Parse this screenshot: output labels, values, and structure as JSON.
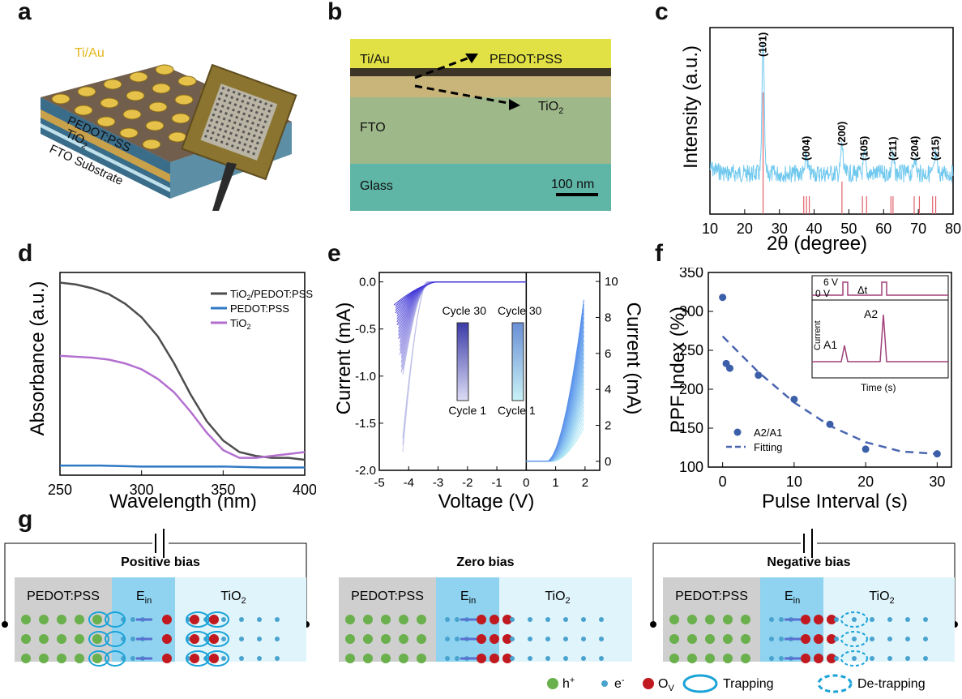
{
  "panels": {
    "a": "a",
    "b": "b",
    "c": "c",
    "d": "d",
    "e": "e",
    "f": "f",
    "g": "g"
  },
  "panel_a": {
    "labels": [
      "Ti/Au",
      "PEDOT:PSS",
      "TiO",
      "2",
      "FTO Substrate"
    ]
  },
  "panel_b": {
    "layers": [
      "Ti/Au",
      "FTO",
      "Glass"
    ],
    "arrow_labels": [
      "PEDOT:PSS",
      "TiO",
      "2"
    ],
    "scale_bar": "100 nm"
  },
  "chart_data": [
    {
      "panel": "c",
      "type": "line",
      "xlabel": "2θ (degree)",
      "ylabel": "Intensity (a.u.)",
      "xlim": [
        10,
        80
      ],
      "xticks": [
        "10",
        "20",
        "30",
        "40",
        "50",
        "60",
        "70",
        "80"
      ],
      "peaks": [
        {
          "x": 25.3,
          "label": "(101)"
        },
        {
          "x": 37.8,
          "label": "(004)"
        },
        {
          "x": 48.0,
          "label": "(200)"
        },
        {
          "x": 54.5,
          "label": "(105)"
        },
        {
          "x": 62.7,
          "label": "(211)"
        },
        {
          "x": 69.0,
          "label": "(204)"
        },
        {
          "x": 75.0,
          "label": "(215)"
        }
      ],
      "reference_lines": [
        25.3,
        37.0,
        37.8,
        38.6,
        48.0,
        53.9,
        55.1,
        62.1,
        62.7,
        68.8,
        70.3,
        74.1,
        75.0
      ],
      "colors": {
        "pattern": "#6fc8ee",
        "reference": "#e0606a"
      }
    },
    {
      "panel": "d",
      "type": "line",
      "xlabel": "Wavelength (nm)",
      "ylabel": "Absorbance (a.u.)",
      "xlim": [
        250,
        400
      ],
      "xticks": [
        "250",
        "300",
        "350",
        "400"
      ],
      "series": [
        {
          "name": "TiO2/PEDOT:PSS",
          "name_main": "TiO",
          "name_sub": "2",
          "name_rest": "/PEDOT:PSS",
          "color": "#4d4d4d",
          "x": [
            250,
            260,
            270,
            280,
            290,
            300,
            310,
            320,
            330,
            340,
            350,
            360,
            370,
            380,
            390,
            400
          ],
          "y": [
            1.0,
            0.99,
            0.97,
            0.94,
            0.89,
            0.82,
            0.72,
            0.58,
            0.42,
            0.28,
            0.18,
            0.12,
            0.1,
            0.09,
            0.09,
            0.08
          ]
        },
        {
          "name": "PEDOT:PSS",
          "color": "#2f78c4",
          "x": [
            250,
            275,
            300,
            325,
            350,
            375,
            400
          ],
          "y": [
            0.05,
            0.05,
            0.045,
            0.045,
            0.045,
            0.04,
            0.04
          ]
        },
        {
          "name": "TiO2",
          "name_main": "TiO",
          "name_sub": "2",
          "name_rest": "",
          "color": "#b36fcf",
          "x": [
            250,
            260,
            270,
            280,
            290,
            300,
            310,
            320,
            330,
            340,
            350,
            360,
            370,
            380,
            390,
            400
          ],
          "y": [
            0.62,
            0.615,
            0.61,
            0.6,
            0.58,
            0.55,
            0.5,
            0.43,
            0.33,
            0.22,
            0.13,
            0.09,
            0.09,
            0.1,
            0.11,
            0.12
          ]
        }
      ]
    },
    {
      "panel": "e",
      "type": "line",
      "xlabel": "Voltage (V)",
      "ylabel_left": "Current (mA)",
      "ylabel_right": "Current (mA)",
      "x_left": [
        -5,
        0
      ],
      "x_right": [
        0,
        2.5
      ],
      "xticks": [
        "-5",
        "-4",
        "-3",
        "-2",
        "-1",
        "0",
        "1",
        "2"
      ],
      "yticks_left": [
        "0.0",
        "-0.5",
        "-1.0",
        "-1.5",
        "-2.0"
      ],
      "yticks_right": [
        "10",
        "8",
        "6",
        "4",
        "2",
        "0"
      ],
      "ylim_left": [
        -2.0,
        0.1
      ],
      "ylim_right": [
        -0.5,
        10.5
      ],
      "legend_left": {
        "top": "Cycle 30",
        "bottom": "Cycle 1"
      },
      "legend_right": {
        "top": "Cycle 30",
        "bottom": "Cycle 1"
      },
      "cycles": 30
    },
    {
      "panel": "f",
      "type": "scatter",
      "xlabel": "Pulse Interval (s)",
      "ylabel": "PPF Index (%)",
      "xlim": [
        -2,
        32
      ],
      "ylim": [
        100,
        350
      ],
      "xticks": [
        "0",
        "10",
        "20",
        "30"
      ],
      "yticks": [
        "100",
        "150",
        "200",
        "250",
        "300",
        "350"
      ],
      "points": [
        {
          "x": 0,
          "y": 318
        },
        {
          "x": 0.5,
          "y": 233
        },
        {
          "x": 1,
          "y": 227
        },
        {
          "x": 5,
          "y": 218
        },
        {
          "x": 10,
          "y": 187
        },
        {
          "x": 15,
          "y": 155
        },
        {
          "x": 20,
          "y": 123
        },
        {
          "x": 30,
          "y": 117
        }
      ],
      "fit": {
        "x": [
          0,
          5,
          10,
          15,
          20,
          25,
          30
        ],
        "y": [
          268,
          222,
          183,
          153,
          132,
          120,
          117
        ]
      },
      "legend": [
        "A2/A1",
        "Fitting"
      ],
      "inset": {
        "pulse_labels": [
          "6 V",
          "0 V",
          "Δt"
        ],
        "xlabel": "Time (s)",
        "ylabel": "Current",
        "peaks": [
          "A1",
          "A2"
        ]
      },
      "colors": {
        "points": "#3b5fa8",
        "fit": "#4a66b0"
      }
    }
  ],
  "panel_g": {
    "sections": [
      {
        "title": "Positive bias",
        "left": "PEDOT:PSS",
        "field": "E",
        "field_sub": "in",
        "right": "TiO",
        "right_sub": "2"
      },
      {
        "title": "Zero bias",
        "left": "PEDOT:PSS",
        "field": "E",
        "field_sub": "in",
        "right": "TiO",
        "right_sub": "2"
      },
      {
        "title": "Negative bias",
        "left": "PEDOT:PSS",
        "field": "E",
        "field_sub": "in",
        "right": "TiO",
        "right_sub": "2"
      }
    ],
    "legend": [
      {
        "symbol": "green-ball",
        "label": "h",
        "sup": "+"
      },
      {
        "symbol": "blue-ball",
        "label": "e",
        "sup": "-"
      },
      {
        "symbol": "red-ball",
        "label": "O",
        "sub": "V"
      },
      {
        "symbol": "solid-ellipse",
        "label": "Trapping"
      },
      {
        "symbol": "dashed-ellipse",
        "label": "De-trapping"
      }
    ],
    "colors": {
      "hole": "#6ab04c",
      "electron": "#4aa3cf",
      "vacancy": "#c0191f",
      "pedot_bg": "#cfcfcf",
      "field_bg": "#8fd3f0",
      "tio2_bg": "#e0f4fb",
      "trap": "#1aa3d8"
    }
  }
}
